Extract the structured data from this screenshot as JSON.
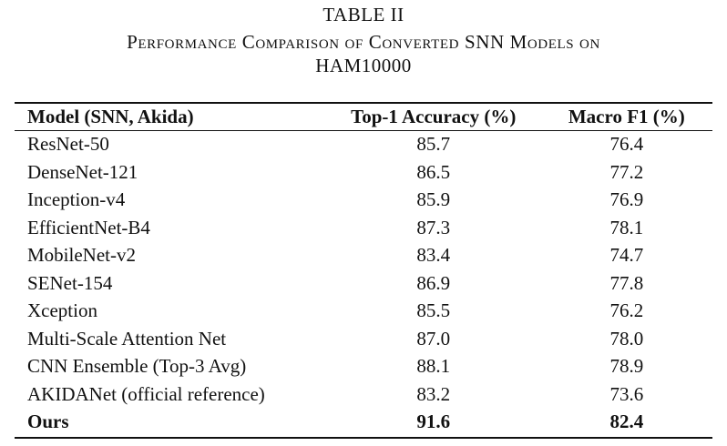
{
  "caption": {
    "label": "TABLE II",
    "title_line1": "Performance Comparison of Converted SNN Models on",
    "title_line2": "HAM10000"
  },
  "table": {
    "headers": [
      "Model (SNN, Akida)",
      "Top-1 Accuracy (%)",
      "Macro F1 (%)"
    ],
    "rows": [
      {
        "model": "ResNet-50",
        "accuracy": "85.7",
        "f1": "76.4"
      },
      {
        "model": "DenseNet-121",
        "accuracy": "86.5",
        "f1": "77.2"
      },
      {
        "model": "Inception-v4",
        "accuracy": "85.9",
        "f1": "76.9"
      },
      {
        "model": "EfficientNet-B4",
        "accuracy": "87.3",
        "f1": "78.1"
      },
      {
        "model": "MobileNet-v2",
        "accuracy": "83.4",
        "f1": "74.7"
      },
      {
        "model": "SENet-154",
        "accuracy": "86.9",
        "f1": "77.8"
      },
      {
        "model": "Xception",
        "accuracy": "85.5",
        "f1": "76.2"
      },
      {
        "model": "Multi-Scale Attention Net",
        "accuracy": "87.0",
        "f1": "78.0"
      },
      {
        "model": "CNN Ensemble (Top-3 Avg)",
        "accuracy": "88.1",
        "f1": "78.9"
      },
      {
        "model": "AKIDANet (official reference)",
        "accuracy": "83.2",
        "f1": "73.6"
      },
      {
        "model": "Ours",
        "accuracy": "91.6",
        "f1": "82.4"
      }
    ]
  }
}
